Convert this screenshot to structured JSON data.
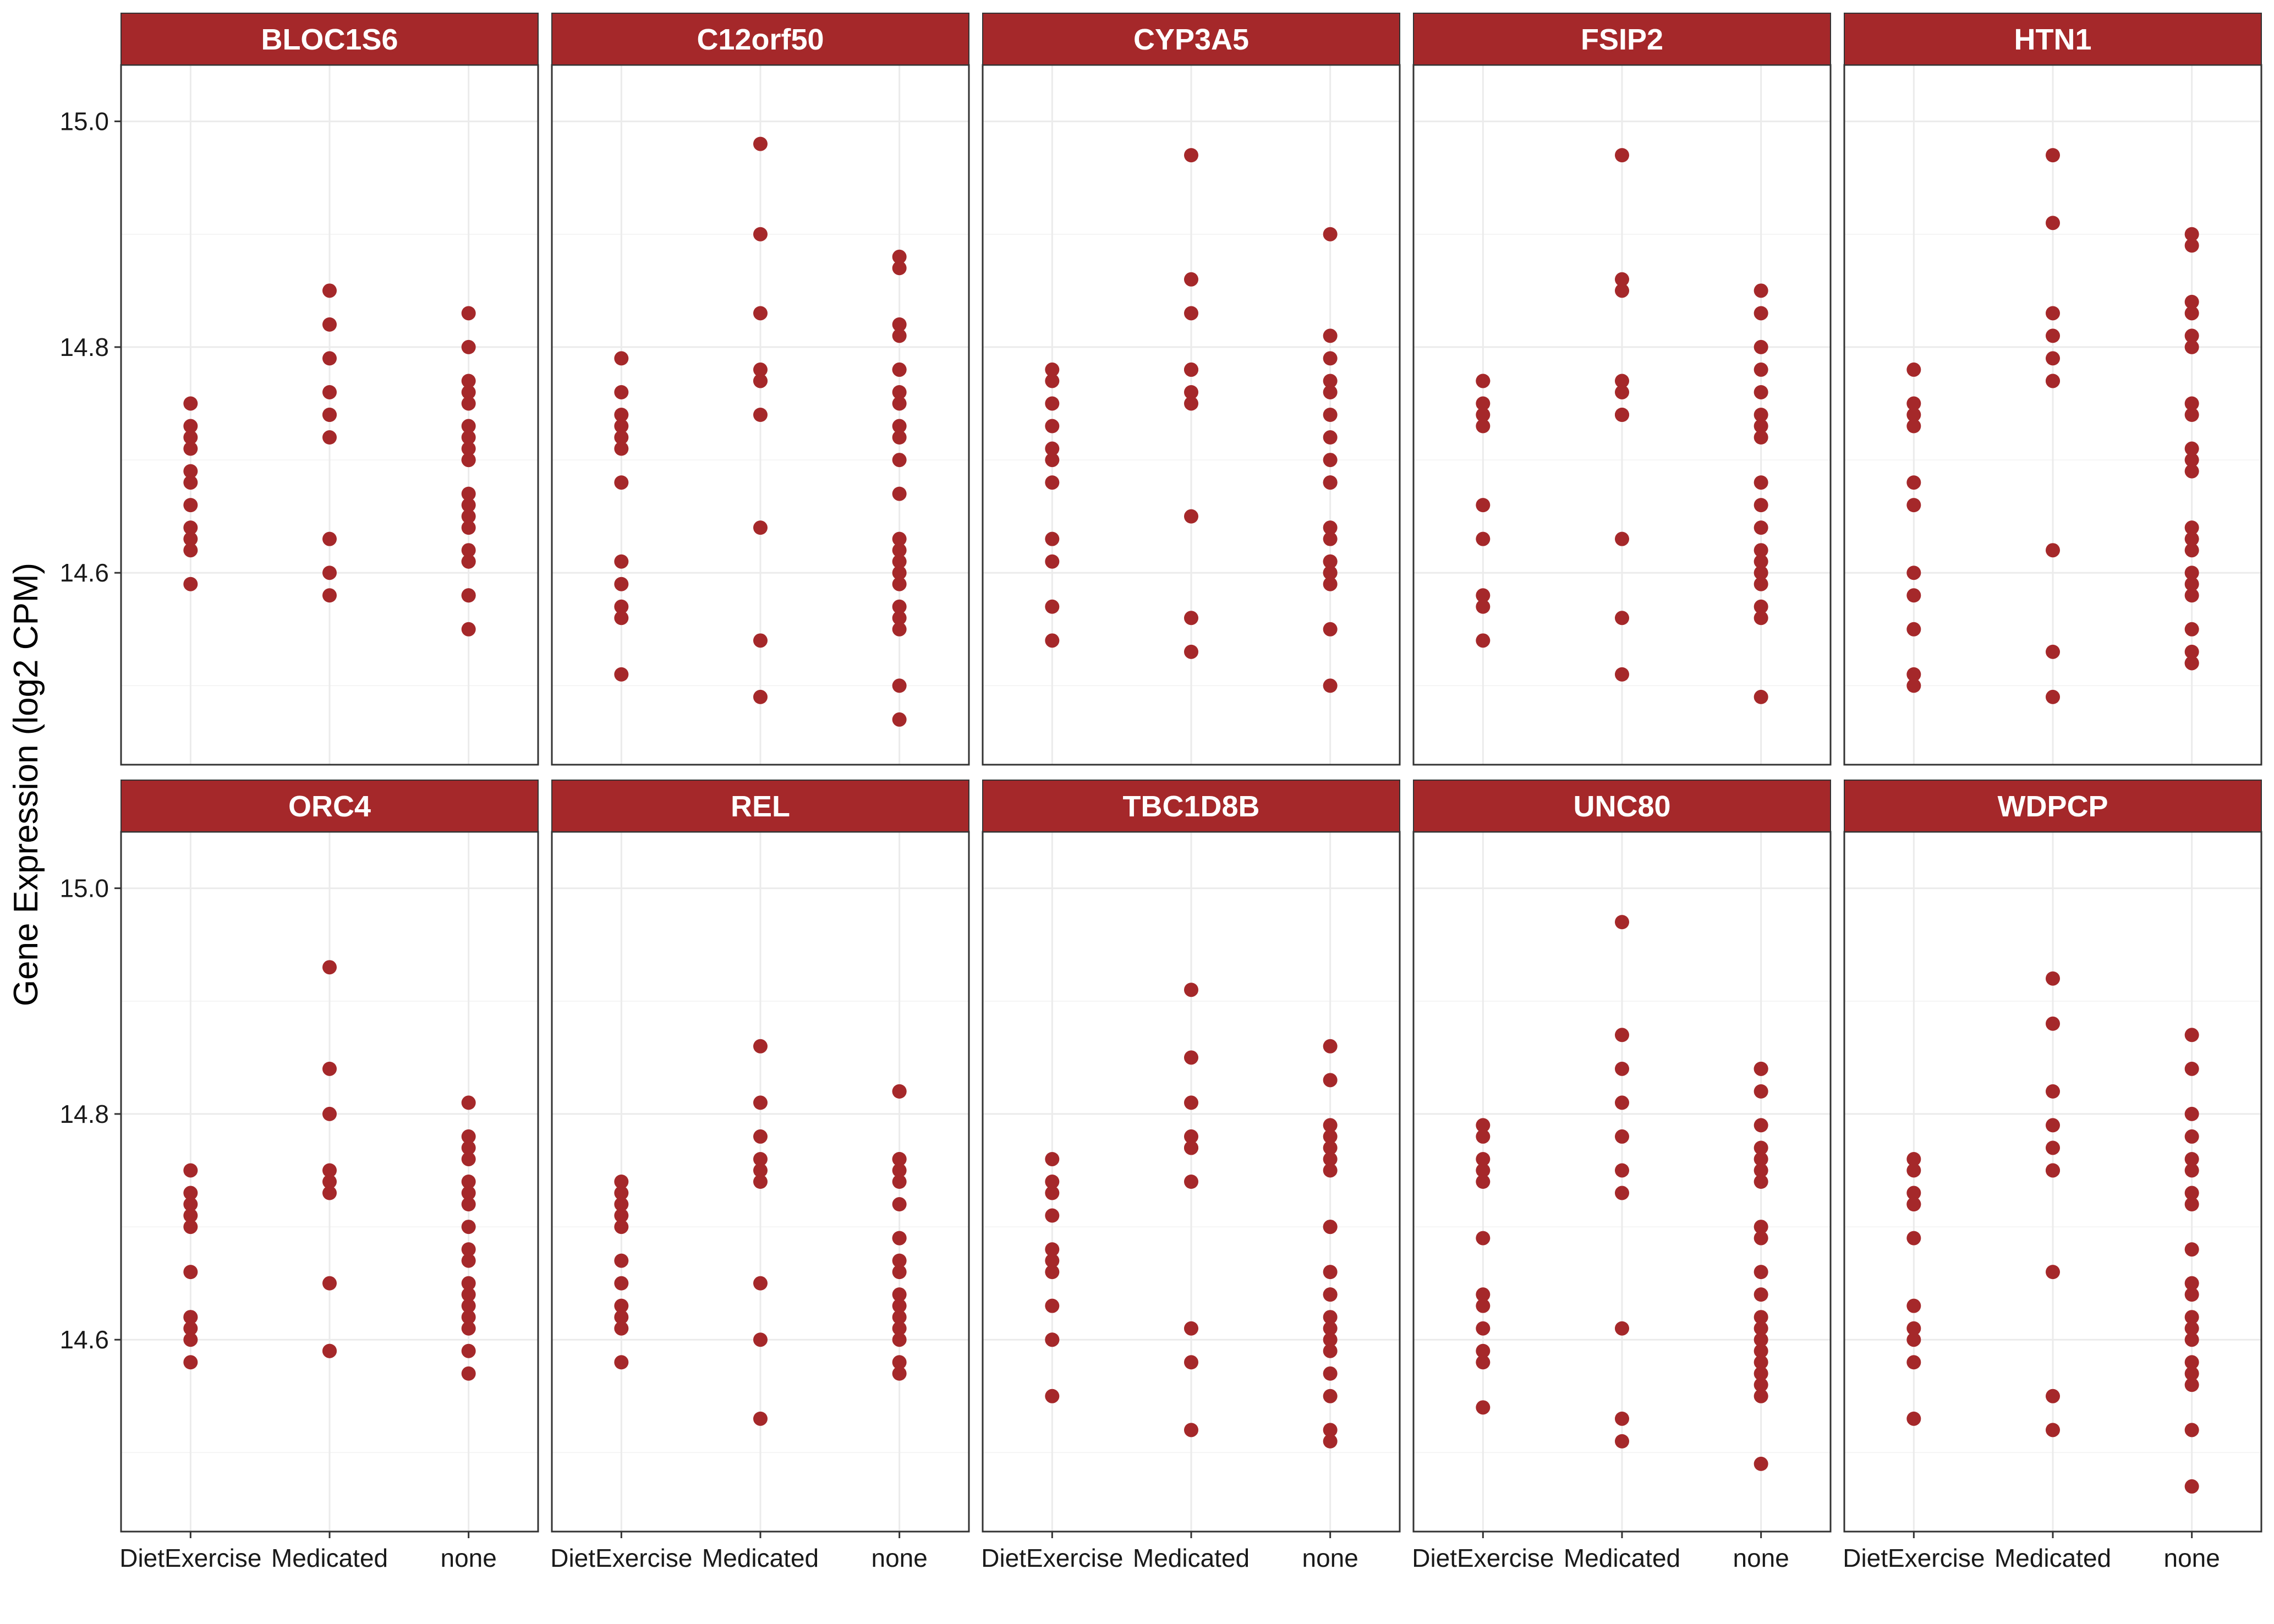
{
  "chart_data": {
    "type": "scatter",
    "facet": "strip",
    "ylabel": "Gene Expression (log2 CPM)",
    "xlabel": "",
    "categories": [
      "DietExercise",
      "Medicated",
      "none"
    ],
    "ylim": [
      14.43,
      15.05
    ],
    "yticks": [
      14.6,
      14.8,
      15.0
    ],
    "ytick_labels": [
      "14.6",
      "14.8",
      "15.0"
    ],
    "point_color": "#a5282a",
    "strip_color": "#a5282a",
    "grid": true,
    "panels": [
      {
        "title": "BLOC1S6",
        "series": [
          {
            "category": "DietExercise",
            "values": [
              14.75,
              14.73,
              14.72,
              14.71,
              14.69,
              14.68,
              14.66,
              14.64,
              14.63,
              14.62,
              14.59
            ]
          },
          {
            "category": "Medicated",
            "values": [
              14.85,
              14.82,
              14.79,
              14.76,
              14.74,
              14.74,
              14.72,
              14.63,
              14.6,
              14.58
            ]
          },
          {
            "category": "none",
            "values": [
              14.83,
              14.8,
              14.77,
              14.76,
              14.75,
              14.73,
              14.72,
              14.71,
              14.7,
              14.7,
              14.67,
              14.66,
              14.65,
              14.64,
              14.62,
              14.61,
              14.61,
              14.58,
              14.58,
              14.55
            ]
          }
        ]
      },
      {
        "title": "C12orf50",
        "series": [
          {
            "category": "DietExercise",
            "values": [
              14.79,
              14.76,
              14.74,
              14.73,
              14.72,
              14.71,
              14.68,
              14.61,
              14.59,
              14.57,
              14.56,
              14.51
            ]
          },
          {
            "category": "Medicated",
            "values": [
              14.98,
              14.9,
              14.83,
              14.78,
              14.77,
              14.77,
              14.74,
              14.64,
              14.54,
              14.49
            ]
          },
          {
            "category": "none",
            "values": [
              14.88,
              14.87,
              14.82,
              14.81,
              14.78,
              14.78,
              14.76,
              14.75,
              14.73,
              14.72,
              14.7,
              14.67,
              14.63,
              14.62,
              14.61,
              14.6,
              14.59,
              14.57,
              14.56,
              14.55,
              14.5,
              14.47
            ]
          }
        ]
      },
      {
        "title": "CYP3A5",
        "series": [
          {
            "category": "DietExercise",
            "values": [
              14.78,
              14.77,
              14.75,
              14.73,
              14.71,
              14.7,
              14.68,
              14.63,
              14.61,
              14.57,
              14.54
            ]
          },
          {
            "category": "Medicated",
            "values": [
              14.97,
              14.86,
              14.83,
              14.78,
              14.78,
              14.76,
              14.75,
              14.65,
              14.56,
              14.53
            ]
          },
          {
            "category": "none",
            "values": [
              14.9,
              14.81,
              14.79,
              14.77,
              14.76,
              14.74,
              14.72,
              14.7,
              14.68,
              14.68,
              14.64,
              14.63,
              14.61,
              14.61,
              14.6,
              14.6,
              14.59,
              14.55,
              14.5
            ]
          }
        ]
      },
      {
        "title": "FSIP2",
        "series": [
          {
            "category": "DietExercise",
            "values": [
              14.77,
              14.77,
              14.75,
              14.74,
              14.73,
              14.66,
              14.63,
              14.58,
              14.57,
              14.54
            ]
          },
          {
            "category": "Medicated",
            "values": [
              14.97,
              14.86,
              14.85,
              14.77,
              14.76,
              14.74,
              14.74,
              14.63,
              14.56,
              14.51
            ]
          },
          {
            "category": "none",
            "values": [
              14.85,
              14.83,
              14.8,
              14.78,
              14.76,
              14.74,
              14.73,
              14.72,
              14.68,
              14.66,
              14.64,
              14.62,
              14.61,
              14.6,
              14.59,
              14.57,
              14.56,
              14.49
            ]
          }
        ]
      },
      {
        "title": "HTN1",
        "series": [
          {
            "category": "DietExercise",
            "values": [
              14.78,
              14.75,
              14.74,
              14.73,
              14.68,
              14.66,
              14.6,
              14.58,
              14.55,
              14.51,
              14.5
            ]
          },
          {
            "category": "Medicated",
            "values": [
              14.97,
              14.91,
              14.83,
              14.81,
              14.79,
              14.77,
              14.77,
              14.62,
              14.53,
              14.49
            ]
          },
          {
            "category": "none",
            "values": [
              14.9,
              14.89,
              14.84,
              14.83,
              14.81,
              14.8,
              14.75,
              14.74,
              14.71,
              14.7,
              14.69,
              14.64,
              14.63,
              14.62,
              14.6,
              14.59,
              14.58,
              14.55,
              14.53,
              14.52,
              14.52
            ]
          }
        ]
      },
      {
        "title": "ORC4",
        "series": [
          {
            "category": "DietExercise",
            "values": [
              14.75,
              14.73,
              14.72,
              14.71,
              14.7,
              14.66,
              14.62,
              14.62,
              14.61,
              14.6,
              14.58
            ]
          },
          {
            "category": "Medicated",
            "values": [
              14.93,
              14.84,
              14.8,
              14.75,
              14.74,
              14.73,
              14.65,
              14.59,
              14.59
            ]
          },
          {
            "category": "none",
            "values": [
              14.81,
              14.78,
              14.77,
              14.76,
              14.74,
              14.73,
              14.72,
              14.7,
              14.68,
              14.67,
              14.65,
              14.64,
              14.63,
              14.62,
              14.61,
              14.59,
              14.57
            ]
          }
        ]
      },
      {
        "title": "REL",
        "series": [
          {
            "category": "DietExercise",
            "values": [
              14.74,
              14.73,
              14.72,
              14.71,
              14.7,
              14.67,
              14.65,
              14.63,
              14.62,
              14.61,
              14.58
            ]
          },
          {
            "category": "Medicated",
            "values": [
              14.86,
              14.81,
              14.78,
              14.76,
              14.75,
              14.74,
              14.65,
              14.6,
              14.53
            ]
          },
          {
            "category": "none",
            "values": [
              14.82,
              14.82,
              14.76,
              14.76,
              14.75,
              14.74,
              14.72,
              14.69,
              14.69,
              14.67,
              14.66,
              14.64,
              14.63,
              14.62,
              14.61,
              14.6,
              14.58,
              14.57
            ]
          }
        ]
      },
      {
        "title": "TBC1D8B",
        "series": [
          {
            "category": "DietExercise",
            "values": [
              14.76,
              14.74,
              14.73,
              14.71,
              14.68,
              14.67,
              14.66,
              14.63,
              14.6,
              14.6,
              14.55
            ]
          },
          {
            "category": "Medicated",
            "values": [
              14.91,
              14.85,
              14.81,
              14.78,
              14.77,
              14.77,
              14.74,
              14.61,
              14.58,
              14.52
            ]
          },
          {
            "category": "none",
            "values": [
              14.86,
              14.83,
              14.79,
              14.78,
              14.77,
              14.76,
              14.75,
              14.7,
              14.7,
              14.66,
              14.64,
              14.64,
              14.62,
              14.61,
              14.6,
              14.59,
              14.57,
              14.55,
              14.52,
              14.51
            ]
          }
        ]
      },
      {
        "title": "UNC80",
        "series": [
          {
            "category": "DietExercise",
            "values": [
              14.79,
              14.78,
              14.76,
              14.75,
              14.74,
              14.69,
              14.64,
              14.63,
              14.61,
              14.59,
              14.58,
              14.54
            ]
          },
          {
            "category": "Medicated",
            "values": [
              14.97,
              14.87,
              14.84,
              14.81,
              14.78,
              14.75,
              14.73,
              14.61,
              14.53,
              14.51
            ]
          },
          {
            "category": "none",
            "values": [
              14.84,
              14.84,
              14.82,
              14.79,
              14.77,
              14.76,
              14.75,
              14.74,
              14.7,
              14.69,
              14.66,
              14.64,
              14.62,
              14.61,
              14.6,
              14.59,
              14.58,
              14.57,
              14.56,
              14.55,
              14.49
            ]
          }
        ]
      },
      {
        "title": "WDPCP",
        "series": [
          {
            "category": "DietExercise",
            "values": [
              14.76,
              14.75,
              14.73,
              14.72,
              14.72,
              14.69,
              14.63,
              14.61,
              14.6,
              14.58,
              14.53
            ]
          },
          {
            "category": "Medicated",
            "values": [
              14.92,
              14.88,
              14.82,
              14.79,
              14.77,
              14.75,
              14.75,
              14.66,
              14.55,
              14.52
            ]
          },
          {
            "category": "none",
            "values": [
              14.87,
              14.84,
              14.8,
              14.78,
              14.76,
              14.75,
              14.73,
              14.72,
              14.68,
              14.65,
              14.64,
              14.62,
              14.61,
              14.6,
              14.58,
              14.57,
              14.56,
              14.52,
              14.47
            ]
          }
        ]
      }
    ]
  }
}
